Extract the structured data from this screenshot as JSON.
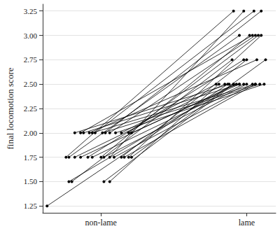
{
  "chart_data": {
    "type": "line",
    "y_label": "final locomotion score",
    "xlim": [
      0.6,
      2.2
    ],
    "xticks": [
      {
        "value": 1,
        "label": "non-lame"
      },
      {
        "value": 2,
        "label": "lame"
      }
    ],
    "ylim": [
      1.18,
      3.32
    ],
    "yticks": [
      1.25,
      {
        "value": 1.5,
        "label": "1.50"
      },
      1.75,
      {
        "value": 2,
        "label": "2.00"
      },
      2.25,
      {
        "value": 2.5,
        "label": "2.50"
      },
      2.75,
      {
        "value": 3,
        "label": "3.00"
      },
      3.25
    ],
    "grid": true,
    "color": "#000000",
    "marker": "circle",
    "pairs": [
      {
        "x": [
          0.63,
          1.87
        ],
        "values": [
          1.25,
          2.5
        ]
      },
      {
        "x": [
          0.78,
          1.91
        ],
        "values": [
          1.5,
          2.5
        ]
      },
      {
        "x": [
          0.8,
          1.9
        ],
        "values": [
          1.5,
          2.75
        ]
      },
      {
        "x": [
          1.02,
          1.91
        ],
        "values": [
          1.5,
          2.5
        ]
      },
      {
        "x": [
          1.06,
          1.81
        ],
        "values": [
          1.5,
          2.5
        ]
      },
      {
        "x": [
          0.76,
          1.91
        ],
        "values": [
          1.75,
          3.25
        ]
      },
      {
        "x": [
          0.78,
          1.95
        ],
        "values": [
          1.75,
          3.0
        ]
      },
      {
        "x": [
          0.82,
          1.85
        ],
        "values": [
          1.75,
          2.5
        ]
      },
      {
        "x": [
          0.86,
          1.93
        ],
        "values": [
          1.75,
          2.5
        ]
      },
      {
        "x": [
          0.91,
          1.98
        ],
        "values": [
          1.75,
          2.75
        ]
      },
      {
        "x": [
          0.94,
          1.98
        ],
        "values": [
          1.75,
          2.5
        ]
      },
      {
        "x": [
          1.0,
          2.02
        ],
        "values": [
          1.75,
          3.0
        ]
      },
      {
        "x": [
          1.02,
          2.0
        ],
        "values": [
          1.75,
          2.5
        ]
      },
      {
        "x": [
          1.06,
          1.98
        ],
        "values": [
          1.75,
          3.25
        ]
      },
      {
        "x": [
          1.09,
          2.04
        ],
        "values": [
          1.75,
          2.5
        ]
      },
      {
        "x": [
          1.14,
          2.0
        ],
        "values": [
          1.75,
          2.75
        ]
      },
      {
        "x": [
          1.16,
          2.06
        ],
        "values": [
          1.75,
          2.5
        ]
      },
      {
        "x": [
          1.19,
          2.1
        ],
        "values": [
          1.75,
          3.0
        ]
      },
      {
        "x": [
          1.21,
          2.13
        ],
        "values": [
          1.75,
          2.75
        ]
      },
      {
        "x": [
          0.82,
          1.88
        ],
        "values": [
          2.0,
          2.5
        ]
      },
      {
        "x": [
          0.86,
          2.04
        ],
        "values": [
          2.0,
          3.0
        ]
      },
      {
        "x": [
          0.88,
          1.95
        ],
        "values": [
          2.0,
          2.5
        ]
      },
      {
        "x": [
          0.92,
          2.07
        ],
        "values": [
          2.0,
          2.75
        ]
      },
      {
        "x": [
          0.94,
          2.06
        ],
        "values": [
          2.0,
          2.5
        ]
      },
      {
        "x": [
          0.96,
          2.05
        ],
        "values": [
          2.0,
          3.25
        ]
      },
      {
        "x": [
          1.01,
          2.09
        ],
        "values": [
          2.0,
          2.5
        ]
      },
      {
        "x": [
          1.03,
          2.1
        ],
        "values": [
          2.0,
          3.25
        ]
      },
      {
        "x": [
          1.06,
          2.06
        ],
        "values": [
          2.0,
          3.0
        ]
      },
      {
        "x": [
          1.1,
          2.12
        ],
        "values": [
          2.0,
          2.5
        ]
      },
      {
        "x": [
          1.14,
          1.79
        ],
        "values": [
          2.0,
          2.5
        ]
      },
      {
        "x": [
          1.19,
          2.08
        ],
        "values": [
          2.0,
          3.0
        ]
      },
      {
        "x": [
          1.21,
          1.95
        ],
        "values": [
          2.0,
          2.5
        ]
      }
    ]
  }
}
